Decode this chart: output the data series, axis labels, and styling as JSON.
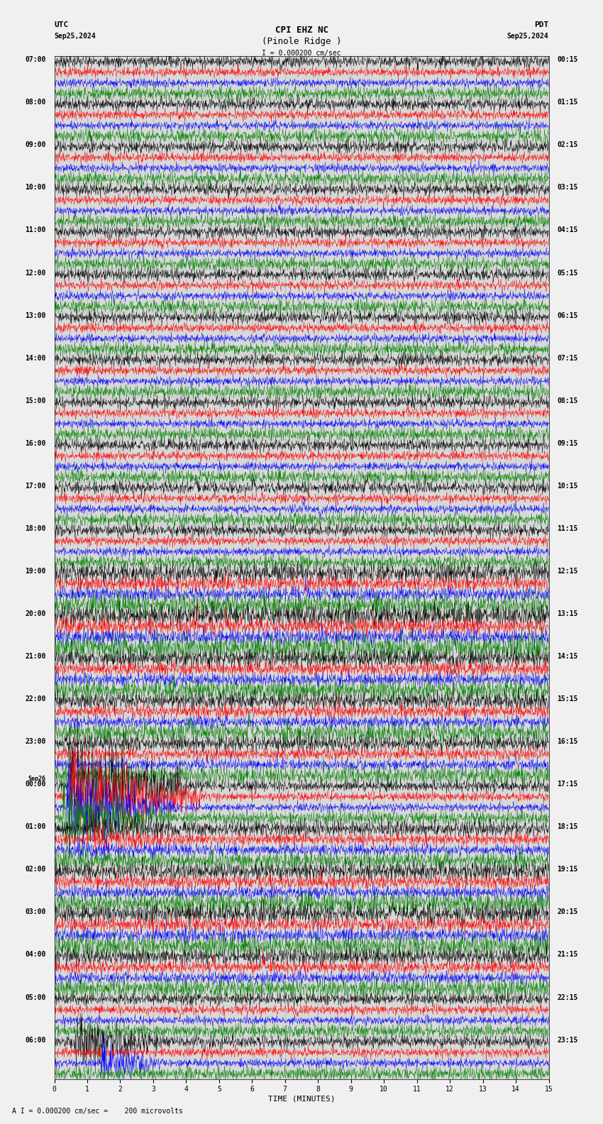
{
  "title_line1": "CPI EHZ NC",
  "title_line2": "(Pinole Ridge )",
  "scale_label": "I = 0.000200 cm/sec",
  "bottom_label": "A I = 0.000200 cm/sec =    200 microvolts",
  "utc_label": "UTC",
  "pdt_label": "PDT",
  "date_left": "Sep25,2024",
  "date_right": "Sep25,2024",
  "xlabel": "TIME (MINUTES)",
  "left_times_utc": [
    "07:00",
    "08:00",
    "09:00",
    "10:00",
    "11:00",
    "12:00",
    "13:00",
    "14:00",
    "15:00",
    "16:00",
    "17:00",
    "18:00",
    "19:00",
    "20:00",
    "21:00",
    "22:00",
    "23:00",
    "Sep26\n00:00",
    "01:00",
    "02:00",
    "03:00",
    "04:00",
    "05:00",
    "06:00"
  ],
  "right_times_pdt": [
    "00:15",
    "01:15",
    "02:15",
    "03:15",
    "04:15",
    "05:15",
    "06:15",
    "07:15",
    "08:15",
    "09:15",
    "10:15",
    "11:15",
    "12:15",
    "13:15",
    "14:15",
    "15:15",
    "16:15",
    "17:15",
    "18:15",
    "19:15",
    "20:15",
    "21:15",
    "22:15",
    "23:15"
  ],
  "n_rows": 24,
  "traces_per_row": 4,
  "colors": [
    "black",
    "red",
    "blue",
    "green"
  ],
  "bg_color": "#f0f0f0",
  "plot_bg_color": "#d8d8d8",
  "x_ticks": [
    0,
    1,
    2,
    3,
    4,
    5,
    6,
    7,
    8,
    9,
    10,
    11,
    12,
    13,
    14,
    15
  ],
  "x_lim": [
    0,
    15
  ],
  "title_fontsize": 9,
  "label_fontsize": 7,
  "tick_fontsize": 7,
  "time_fontsize": 7
}
